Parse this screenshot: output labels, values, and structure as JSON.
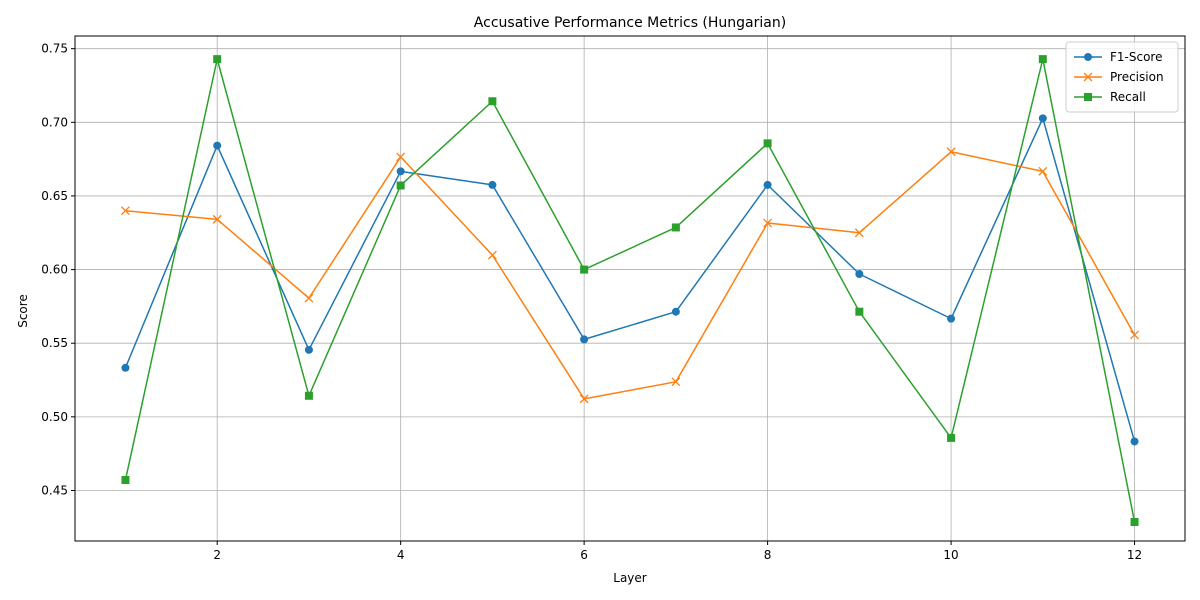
{
  "chart_data": {
    "type": "line",
    "title": "Accusative Performance Metrics (Hungarian)",
    "xlabel": "Layer",
    "ylabel": "Score",
    "x": [
      1,
      2,
      3,
      4,
      5,
      6,
      7,
      8,
      9,
      10,
      11,
      12
    ],
    "xlim": [
      0.45,
      12.55
    ],
    "ylim": [
      0.4157,
      0.7586
    ],
    "xticks": [
      2,
      4,
      6,
      8,
      10,
      12
    ],
    "yticks": [
      0.45,
      0.5,
      0.55,
      0.6,
      0.65,
      0.7,
      0.75
    ],
    "ytick_labels": [
      "0.45",
      "0.50",
      "0.55",
      "0.60",
      "0.65",
      "0.70",
      "0.75"
    ],
    "grid": true,
    "legend_position": "top-right",
    "series": [
      {
        "name": "F1-Score",
        "color": "#1f77b4",
        "marker": "circle",
        "values": [
          0.5333,
          0.6842,
          0.5455,
          0.6667,
          0.6575,
          0.5526,
          0.5714,
          0.6575,
          0.597,
          0.5667,
          0.7027,
          0.4833
        ]
      },
      {
        "name": "Precision",
        "color": "#ff7f0e",
        "marker": "x",
        "values": [
          0.64,
          0.6341,
          0.5806,
          0.6765,
          0.6098,
          0.5122,
          0.5238,
          0.6316,
          0.625,
          0.68,
          0.6667,
          0.5556
        ]
      },
      {
        "name": "Recall",
        "color": "#2ca02c",
        "marker": "square",
        "values": [
          0.4571,
          0.7429,
          0.5143,
          0.6571,
          0.7143,
          0.6,
          0.6286,
          0.6857,
          0.5714,
          0.4857,
          0.7429,
          0.4286
        ]
      }
    ]
  }
}
